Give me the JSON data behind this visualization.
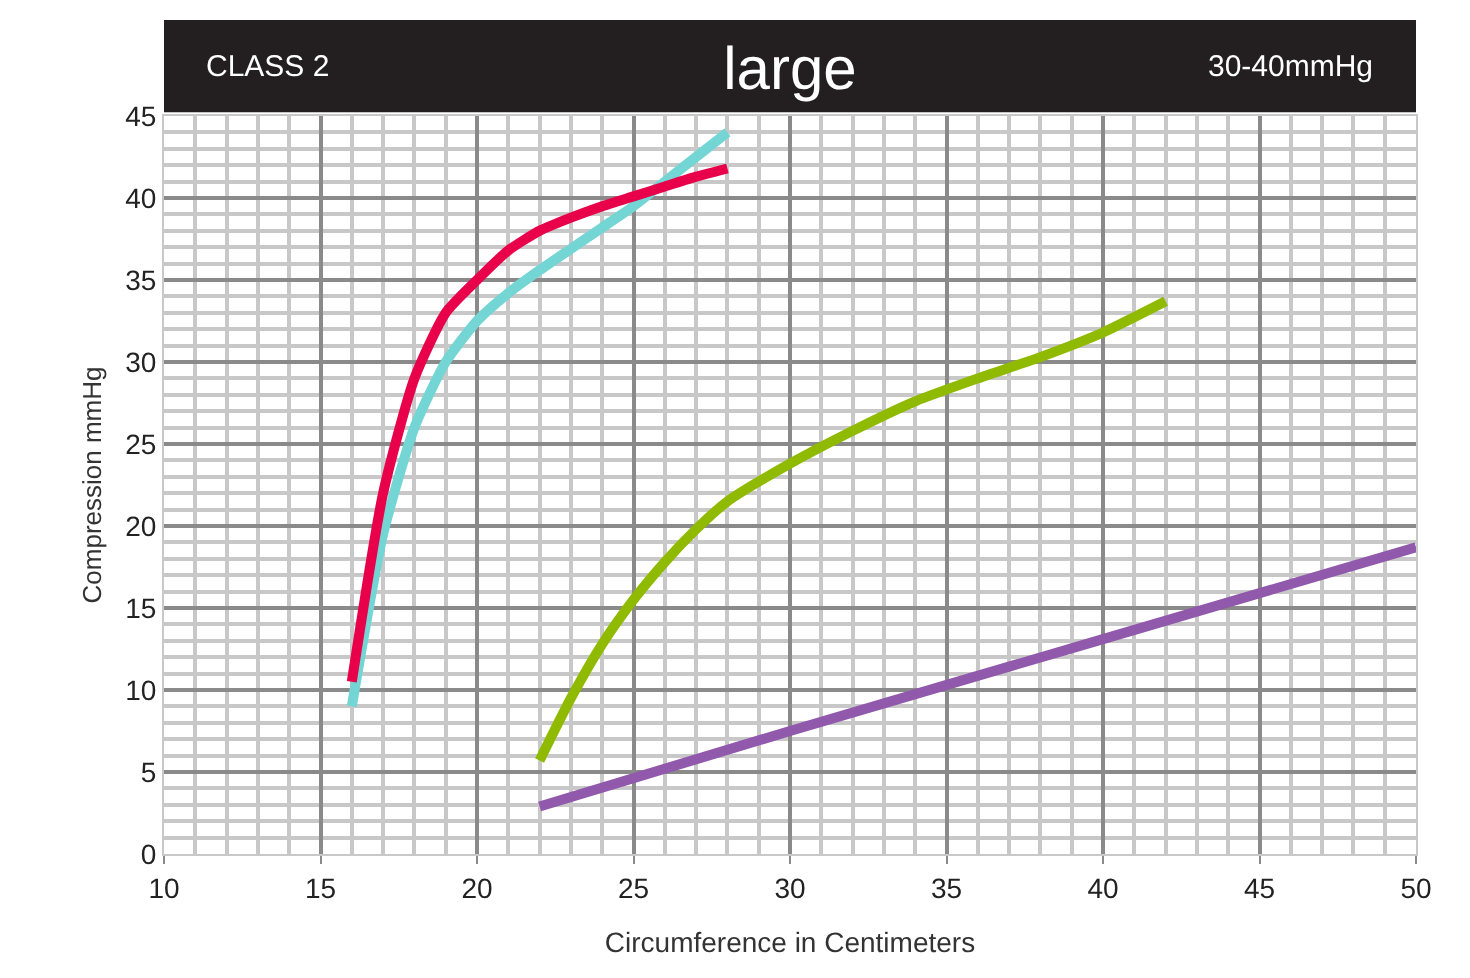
{
  "chart_data": {
    "type": "line",
    "title": "large",
    "xlabel": "Circumference in Centimeters",
    "ylabel": "Compression mmHg",
    "annotations": [
      "CLASS 2",
      "30-40mmHg"
    ],
    "xlim": [
      10,
      50
    ],
    "xticks": [
      10,
      15,
      20,
      25,
      30,
      35,
      40,
      45,
      50
    ],
    "ylim": [
      0,
      45
    ],
    "yticks": [
      0,
      5,
      10,
      15,
      20,
      25,
      30,
      35,
      40,
      45
    ],
    "grid": true,
    "marker": "none",
    "line_style": "solid",
    "series": [
      {
        "color": "#73d5d4",
        "x": [
          16,
          17,
          18,
          19,
          20,
          21,
          22,
          23,
          24,
          25,
          26,
          27,
          28
        ],
        "values": [
          9,
          19.5,
          26,
          30,
          32.5,
          34.2,
          35.6,
          36.9,
          38.2,
          39.5,
          41,
          42.5,
          44
        ]
      },
      {
        "color": "#e8004a",
        "x": [
          16,
          17,
          18,
          19,
          20,
          21,
          22,
          23,
          24,
          25,
          26,
          27,
          28
        ],
        "values": [
          10.5,
          22,
          29,
          33,
          35,
          36.8,
          38,
          38.8,
          39.5,
          40.1,
          40.7,
          41.3,
          41.8
        ]
      },
      {
        "color": "#8fba00",
        "x": [
          22,
          23,
          24,
          25,
          26,
          27,
          28,
          30,
          32,
          34,
          36,
          38,
          40,
          42
        ],
        "values": [
          5.7,
          9.5,
          12.8,
          15.5,
          17.8,
          19.8,
          21.5,
          23.8,
          25.8,
          27.6,
          29,
          30.3,
          31.8,
          33.7
        ]
      },
      {
        "color": "#9159ab",
        "x": [
          22,
          30,
          40,
          50
        ],
        "values": [
          2.9,
          7.5,
          13.1,
          18.7
        ]
      }
    ]
  }
}
